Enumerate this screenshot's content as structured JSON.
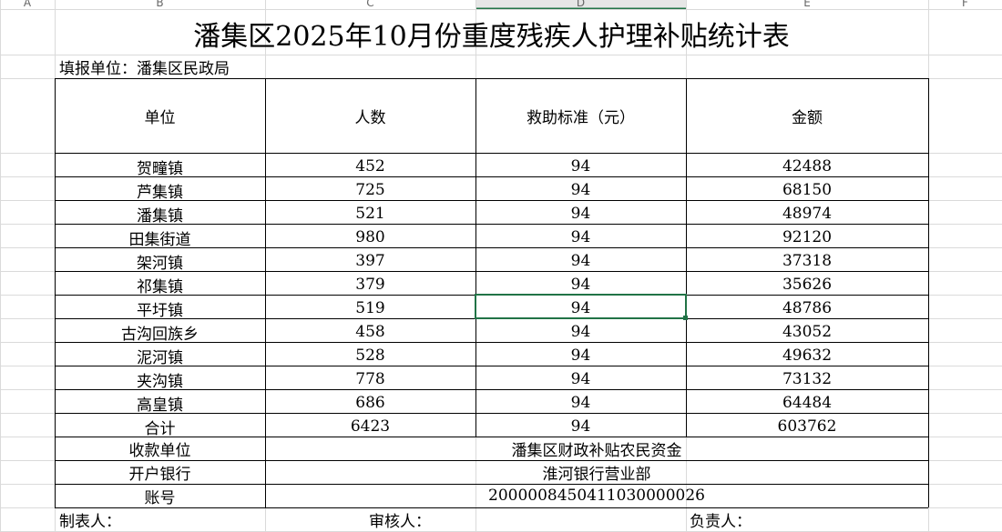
{
  "column_headers": [
    "A",
    "B",
    "C",
    "D",
    "E",
    "F"
  ],
  "title": "潘集区2025年10月份重度残疾人护理补贴统计表",
  "unit": "填报单位：潘集区民政局",
  "table": {
    "header": [
      "单位",
      "人数",
      "救助标准（元）",
      "金额"
    ],
    "rows": [
      [
        "贺疃镇",
        "452",
        "94",
        "42488"
      ],
      [
        "芦集镇",
        "725",
        "94",
        "68150"
      ],
      [
        "潘集镇",
        "521",
        "94",
        "48974"
      ],
      [
        "田集街道",
        "980",
        "94",
        "92120"
      ],
      [
        "架河镇",
        "397",
        "94",
        "37318"
      ],
      [
        "祁集镇",
        "379",
        "94",
        "35626"
      ],
      [
        "平圩镇",
        "519",
        "94",
        "48786"
      ],
      [
        "古沟回族乡",
        "458",
        "94",
        "43052"
      ],
      [
        "泥河镇",
        "528",
        "94",
        "49632"
      ],
      [
        "夹沟镇",
        "778",
        "94",
        "73132"
      ],
      [
        "高皇镇",
        "686",
        "94",
        "64484"
      ],
      [
        "合计",
        "6423",
        "94",
        "603762"
      ]
    ]
  },
  "payment": [
    [
      "收款单位",
      "潘集区财政补贴农民资金"
    ],
    [
      "开户银行",
      "淮河银行营业部"
    ],
    [
      "账号",
      "2000008450411030000026"
    ]
  ],
  "footer": [
    "制表人：",
    "审核人：",
    "负责人："
  ]
}
